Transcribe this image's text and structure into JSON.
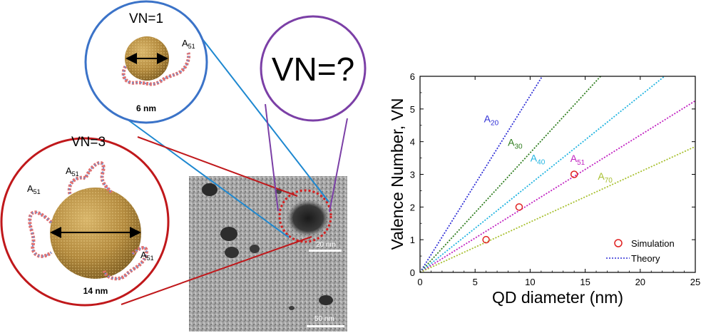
{
  "schematic": {
    "circle_vn1": {
      "title": "VN=1",
      "strand_label": "A",
      "strand_sub": "51",
      "size_label": "6 nm",
      "color": "#3b73c8"
    },
    "circle_vn3": {
      "title": "VN=3",
      "strand_label": "A",
      "strand_sub": "51",
      "size_label": "14 nm",
      "color": "#c0181b"
    },
    "circle_unknown": {
      "title": "VN=?",
      "color": "#7b3fa6"
    },
    "tem": {
      "scale_top": "20 nm",
      "scale_bottom": "50 nm"
    }
  },
  "chart_data": {
    "type": "line",
    "xlabel": "QD diameter (nm)",
    "ylabel": "Valence Number, VN",
    "xlim": [
      0,
      25
    ],
    "ylim": [
      0,
      6
    ],
    "xticks": [
      "0",
      "5",
      "10",
      "15",
      "20",
      "25"
    ],
    "yticks": [
      "0",
      "1",
      "2",
      "3",
      "4",
      "5",
      "6"
    ],
    "grid": false,
    "series": [
      {
        "name": "A20",
        "label_base": "A",
        "label_sub": "20",
        "color": "#2f2fd6",
        "x": [
          0,
          11.1
        ],
        "y": [
          0,
          6
        ]
      },
      {
        "name": "A30",
        "label_base": "A",
        "label_sub": "30",
        "color": "#2e7d1e",
        "x": [
          0,
          16.4
        ],
        "y": [
          0,
          6
        ]
      },
      {
        "name": "A40",
        "label_base": "A",
        "label_sub": "40",
        "color": "#1fb3e0",
        "x": [
          0,
          22.2
        ],
        "y": [
          0,
          6
        ]
      },
      {
        "name": "A51",
        "label_base": "A",
        "label_sub": "51",
        "color": "#c020c0",
        "x": [
          0,
          25
        ],
        "y": [
          0,
          5.25
        ]
      },
      {
        "name": "A70",
        "label_base": "A",
        "label_sub": "70",
        "color": "#a8c030",
        "x": [
          0,
          25
        ],
        "y": [
          0,
          3.85
        ]
      }
    ],
    "simulation": {
      "x": [
        6,
        9,
        14
      ],
      "y": [
        1,
        2,
        3
      ],
      "color": "#e02020"
    },
    "legend": {
      "placement": "bottom-right",
      "simulation_label": "Simulation",
      "theory_label": "Theory",
      "theory_color": "#2f2fd6"
    }
  }
}
